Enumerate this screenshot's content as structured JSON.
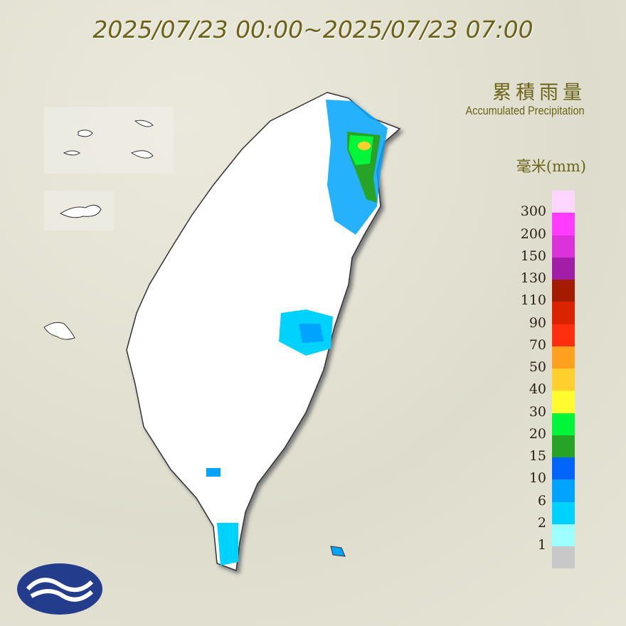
{
  "title": "2025/07/23 00:00~2025/07/23 07:00",
  "legend": {
    "title_zh": "累積雨量",
    "title_en": "Accumulated Precipitation",
    "unit": "毫米(mm)",
    "colors": [
      "#ffd6ff",
      "#ff3cff",
      "#dc32dc",
      "#a21ea8",
      "#a51b00",
      "#da2400",
      "#ff2e0e",
      "#ffa11e",
      "#ffd02d",
      "#fffb2f",
      "#01f63a",
      "#27a426",
      "#0165fc",
      "#00a3fd",
      "#00d2fe",
      "#9dffff",
      "#c8c8c8"
    ],
    "labels": [
      "300",
      "200",
      "150",
      "130",
      "110",
      "90",
      "70",
      "50",
      "40",
      "30",
      "20",
      "15",
      "10",
      "6",
      "2",
      "1"
    ]
  },
  "logo": "central-weather-administration-logo"
}
